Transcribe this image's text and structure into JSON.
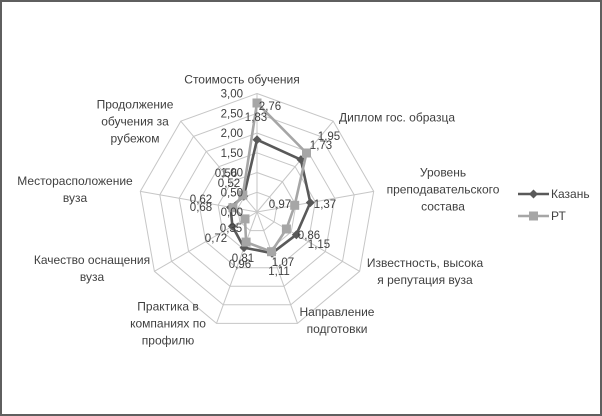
{
  "chart_data": {
    "type": "radar",
    "title": "",
    "grid": true,
    "legend_position": "right",
    "categories": [
      "Стоимость обучения",
      "Диплом гос. образца",
      "Уровень преподавательского состава",
      "Известность, высокая репутация вуза",
      "Направление подготовки",
      "Практика в компаниях по профилю",
      "Качество оснащения вуза",
      "Месторасположение вуза",
      "Продолжение обучения за рубежом"
    ],
    "category_label_lines": [
      [
        "Стоимость обучения"
      ],
      [
        "Диплом гос. образца"
      ],
      [
        "Уровень",
        "преподавательского",
        "состава"
      ],
      [
        "Известность, высока",
        "я репутация вуза"
      ],
      [
        "Направление",
        "подготовки"
      ],
      [
        "Практика в",
        "компаниях по",
        "профилю"
      ],
      [
        "Качество оснащения",
        "вуза"
      ],
      [
        "Месторасположение",
        "вуза"
      ],
      [
        "Продолжение",
        "обучения за",
        "рубежом"
      ]
    ],
    "series": [
      {
        "name": "Казань",
        "marker": "diamond",
        "color": "#595959",
        "values": [
          1.83,
          1.73,
          1.37,
          1.15,
          1.11,
          0.96,
          0.72,
          0.68,
          0.52
        ],
        "value_labels": [
          "1,83",
          "1,73",
          "1,37",
          "1,15",
          "1,11",
          "0,96",
          "0,72",
          "0,68",
          "0,52"
        ]
      },
      {
        "name": "РТ",
        "marker": "square",
        "color": "#a6a6a6",
        "values": [
          2.76,
          1.95,
          0.97,
          0.86,
          1.07,
          0.81,
          0.35,
          0.62,
          0.56
        ],
        "value_labels": [
          "2,76",
          "1,95",
          "0,97",
          "0,86",
          "1,07",
          "0,81",
          "0,35",
          "0,62",
          "0,56"
        ]
      }
    ],
    "radial_axis": {
      "min": 0,
      "max": 3,
      "step": 0.5,
      "tick_labels": [
        "0,00",
        "0,50",
        "1,00",
        "1,50",
        "2,00",
        "2,50",
        "3,00"
      ]
    },
    "colors": {
      "kazan_series": "#595959",
      "rt_series": "#a6a6a6",
      "gridline": "#c6c6c6",
      "text": "#404040",
      "background": "#ffffff",
      "frame_border": "#5f5f5f"
    }
  },
  "legend": {
    "items": [
      {
        "label": "Казань"
      },
      {
        "label": "РТ"
      }
    ]
  }
}
